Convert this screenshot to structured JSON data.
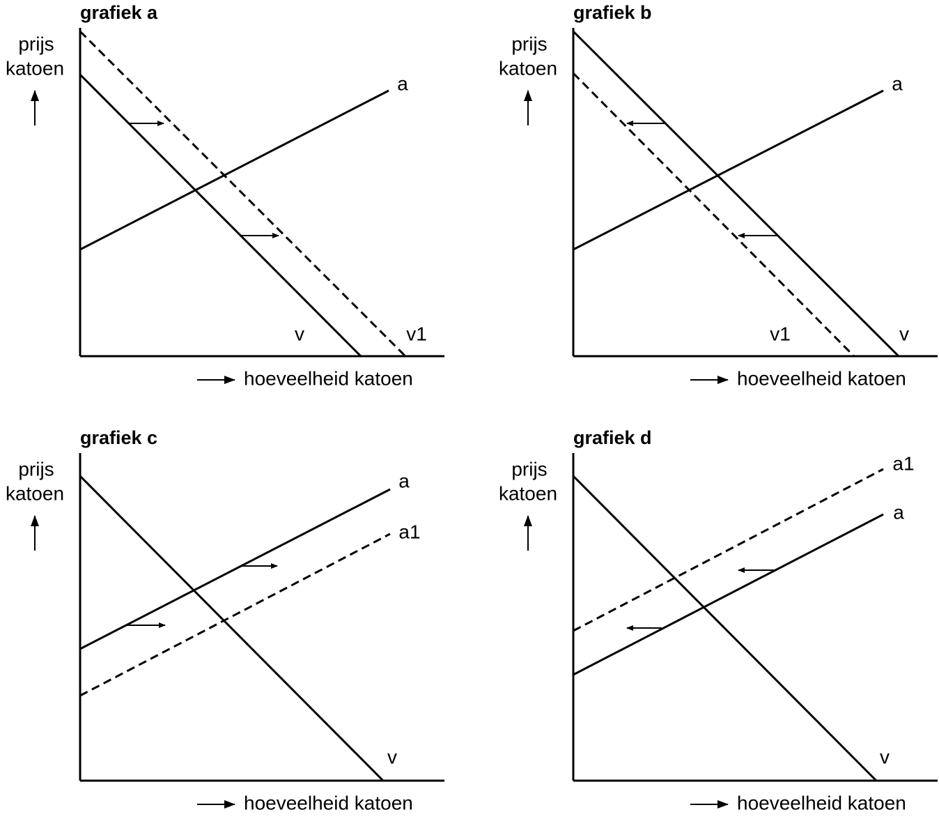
{
  "panels": [
    {
      "title": "grafiek a",
      "y_label": [
        "prijs",
        "katoen"
      ],
      "x_label": "hoeveelheid katoen",
      "curve_labels": [
        "a",
        "v",
        "v1"
      ]
    },
    {
      "title": "grafiek b",
      "y_label": [
        "prijs",
        "katoen"
      ],
      "x_label": "hoeveelheid katoen",
      "curve_labels": [
        "a",
        "v1",
        "v"
      ]
    },
    {
      "title": "grafiek c",
      "y_label": [
        "prijs",
        "katoen"
      ],
      "x_label": "hoeveelheid katoen",
      "curve_labels": [
        "a",
        "a1",
        "v"
      ]
    },
    {
      "title": "grafiek d",
      "y_label": [
        "prijs",
        "katoen"
      ],
      "x_label": "hoeveelheid katoen",
      "curve_labels": [
        "a1",
        "a",
        "v"
      ]
    }
  ]
}
